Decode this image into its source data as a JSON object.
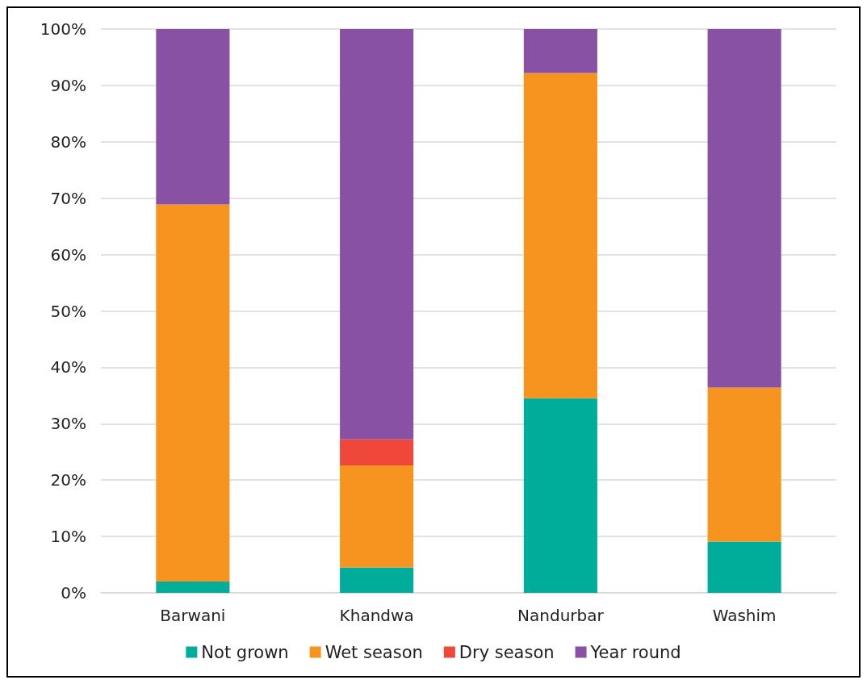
{
  "chart_data": {
    "type": "bar",
    "stacked": true,
    "categories": [
      "Barwani",
      "Khandwa",
      "Nandurbar",
      "Washim"
    ],
    "series": [
      {
        "name": "Not grown",
        "color": "#00ad9a",
        "values": [
          2.0,
          4.5,
          34.5,
          9.1
        ]
      },
      {
        "name": "Wet season",
        "color": "#f7941f",
        "values": [
          66.9,
          18.1,
          57.7,
          27.3
        ]
      },
      {
        "name": "Dry season",
        "color": "#ef473a",
        "values": [
          0,
          4.6,
          0,
          0
        ]
      },
      {
        "name": "Year round",
        "color": "#8851a3",
        "values": [
          31.1,
          72.8,
          7.8,
          63.6
        ]
      }
    ],
    "ylim": [
      0,
      100
    ],
    "yticks": [
      {
        "value": 0,
        "label": "0%"
      },
      {
        "value": 10,
        "label": "10%"
      },
      {
        "value": 20,
        "label": "20%"
      },
      {
        "value": 30,
        "label": "30%"
      },
      {
        "value": 40,
        "label": "40%"
      },
      {
        "value": 50,
        "label": "50%"
      },
      {
        "value": 60,
        "label": "60%"
      },
      {
        "value": 70,
        "label": "70%"
      },
      {
        "value": 80,
        "label": "80%"
      },
      {
        "value": 90,
        "label": "90%"
      },
      {
        "value": 100,
        "label": "100%"
      }
    ],
    "grid": "y",
    "legend": "bottom"
  }
}
